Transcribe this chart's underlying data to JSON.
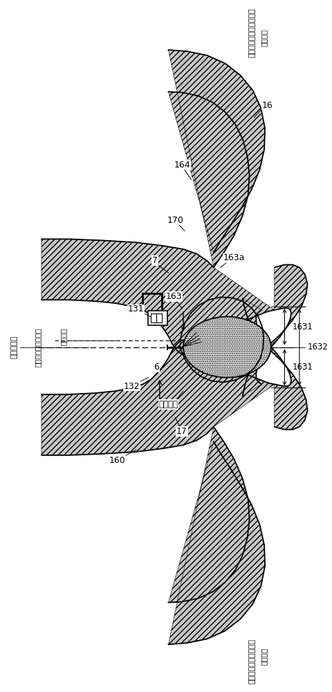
{
  "bg_color": "#ffffff",
  "fig_width": 4.8,
  "fig_height": 10.0,
  "labels": {
    "top_right_vertical": "発動机輸出軸的另一方向",
    "top_right_sub": "（后側）",
    "bottom_right_vertical": "発動机輸出軸的一方向",
    "bottom_right_sub": "（前側）",
    "left_center_vertical": "空腔的中心",
    "left_label1": "燃料喷射閥的閥軸心",
    "left_label2": "缸径中心",
    "num_164": "164",
    "num_170": "170",
    "num_7": "7",
    "num_131": "131",
    "num_132": "132",
    "num_6": "6",
    "num_16": "16",
    "num_163a": "163a",
    "num_163": "163",
    "num_160": "160",
    "num_17": "17",
    "num_1631_top": "1631",
    "num_1632": "1632",
    "num_1631_bot": "1631",
    "mixed_gas": "混合气層"
  }
}
